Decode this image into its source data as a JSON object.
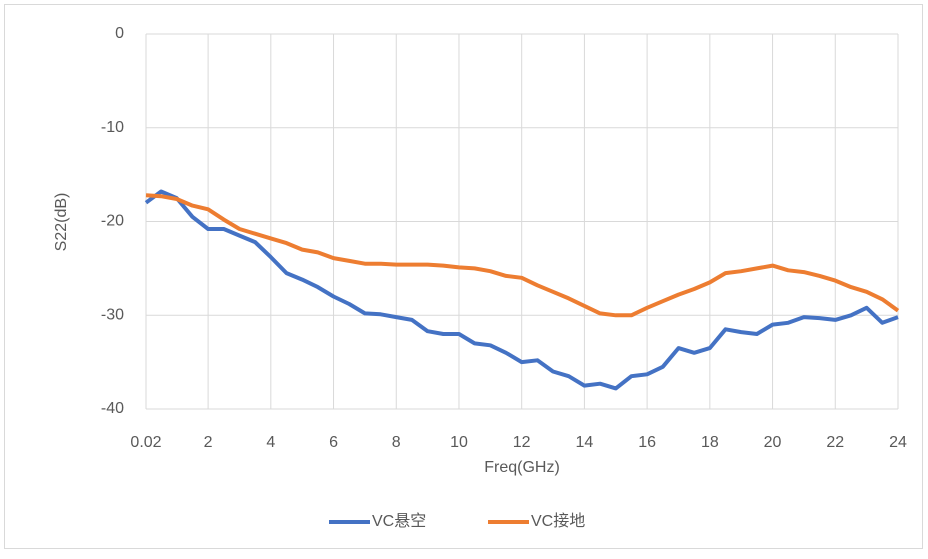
{
  "chart_data": {
    "type": "line",
    "xlabel": "Freq(GHz)",
    "ylabel": "S22(dB)",
    "x": [
      0.02,
      0.5,
      1,
      1.5,
      2,
      2.5,
      3,
      3.5,
      4,
      4.5,
      5,
      5.5,
      6,
      6.5,
      7,
      7.5,
      8,
      8.5,
      9,
      9.5,
      10,
      10.5,
      11,
      11.5,
      12,
      12.5,
      13,
      13.5,
      14,
      14.5,
      15,
      15.5,
      16,
      16.5,
      17,
      17.5,
      18,
      18.5,
      19,
      19.5,
      20,
      20.5,
      21,
      21.5,
      22,
      22.5,
      23,
      23.5,
      24
    ],
    "series": [
      {
        "name": "VC悬空",
        "color": "#4472c4",
        "values": [
          -18,
          -16.8,
          -17.5,
          -19.5,
          -20.8,
          -20.8,
          -21.5,
          -22.2,
          -23.8,
          -25.5,
          -26.2,
          -27,
          -28,
          -28.8,
          -29.8,
          -29.9,
          -30.2,
          -30.5,
          -31.7,
          -32,
          -32,
          -33,
          -33.2,
          -34,
          -35,
          -34.8,
          -36,
          -36.5,
          -37.5,
          -37.3,
          -37.8,
          -36.5,
          -36.3,
          -35.5,
          -33.5,
          -34,
          -33.5,
          -31.5,
          -31.8,
          -32,
          -31,
          -30.8,
          -30.2,
          -30.3,
          -30.5,
          -30,
          -29.2,
          -30.8,
          -30.2
        ]
      },
      {
        "name": "VC接地",
        "color": "#ed7d31",
        "values": [
          -17.2,
          -17.3,
          -17.6,
          -18.3,
          -18.7,
          -19.8,
          -20.8,
          -21.3,
          -21.8,
          -22.3,
          -23,
          -23.3,
          -23.9,
          -24.2,
          -24.5,
          -24.5,
          -24.6,
          -24.6,
          -24.6,
          -24.7,
          -24.9,
          -25,
          -25.3,
          -25.8,
          -26,
          -26.8,
          -27.5,
          -28.2,
          -29,
          -29.8,
          -30,
          -30,
          -29.2,
          -28.5,
          -27.8,
          -27.2,
          -26.5,
          -25.5,
          -25.3,
          -25,
          -24.7,
          -25.2,
          -25.4,
          -25.8,
          -26.3,
          -27,
          -27.5,
          -28.3,
          -29.5
        ]
      }
    ],
    "xlim": [
      0.02,
      24
    ],
    "xticks": [
      0.02,
      2,
      4,
      6,
      8,
      10,
      12,
      14,
      16,
      18,
      20,
      22,
      24
    ],
    "ylim": [
      -40,
      0
    ],
    "yticks": [
      0,
      -10,
      -20,
      -30,
      -40
    ],
    "grid": true,
    "legend": "bottom"
  }
}
